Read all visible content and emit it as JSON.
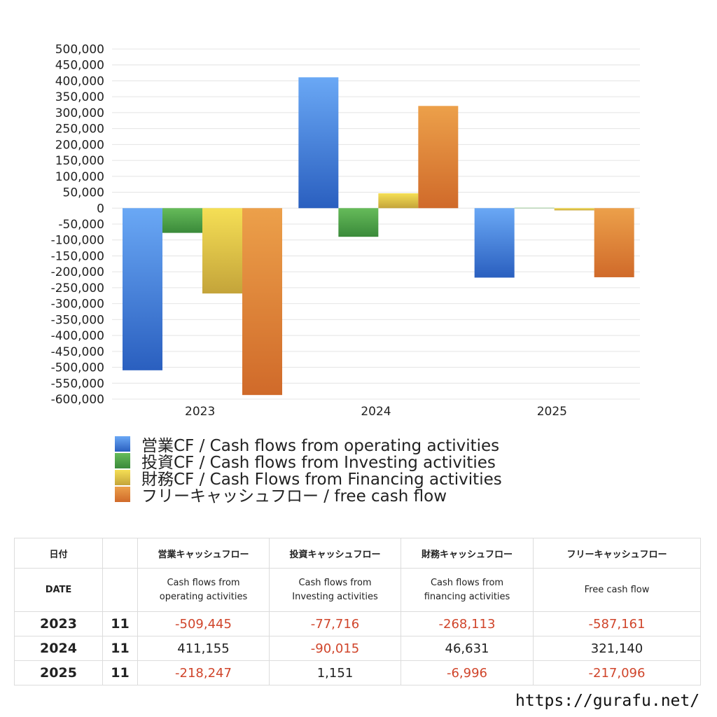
{
  "chart_data": {
    "type": "bar",
    "categories": [
      "2023",
      "2024",
      "2025"
    ],
    "series": [
      {
        "name": "営業CF / Cash flows from operating activities",
        "values": [
          -509445,
          411155,
          -218247
        ],
        "color_top": "#6aa8f5",
        "color_bottom": "#2a5fbf"
      },
      {
        "name": "投資CF / Cash flows from Investing activities",
        "values": [
          -77716,
          -90015,
          1151
        ],
        "color_top": "#66bb5a",
        "color_bottom": "#3a8a3a"
      },
      {
        "name": "財務CF / Cash Flows from Financing activities",
        "values": [
          -268113,
          46631,
          -6996
        ],
        "color_top": "#f5df55",
        "color_bottom": "#c4a43a"
      },
      {
        "name": "フリーキャッシュフロー / free cash flow",
        "values": [
          -587161,
          321140,
          -217096
        ],
        "color_top": "#eca04a",
        "color_bottom": "#d06a2a"
      }
    ],
    "ylim": [
      -600000,
      500000
    ],
    "ytick_step": 50000,
    "grid": true,
    "legend": "bottom"
  },
  "table": {
    "header_ja": [
      "日付",
      "",
      "営業キャッシュフロー",
      "投資キャッシュフロー",
      "財務キャッシュフロー",
      "フリーキャッシュフロー"
    ],
    "header_en": [
      "DATE",
      "",
      "Cash flows from operating activities",
      "Cash flows from Investing activities",
      "Cash flows from financing activities",
      "Free cash flow"
    ],
    "header_en_lines": [
      [
        "DATE"
      ],
      [
        ""
      ],
      [
        "Cash flows from",
        "operating activities"
      ],
      [
        "Cash flows from",
        "Investing activities"
      ],
      [
        "Cash flows from",
        "financing activities"
      ],
      [
        "Free cash flow"
      ]
    ],
    "rows": [
      {
        "year": "2023",
        "month": "11",
        "values": [
          "-509,445",
          "-77,716",
          "-268,113",
          "-587,161"
        ]
      },
      {
        "year": "2024",
        "month": "11",
        "values": [
          "411,155",
          "-90,015",
          "46,631",
          "321,140"
        ]
      },
      {
        "year": "2025",
        "month": "11",
        "values": [
          "-218,247",
          "1,151",
          "-6,996",
          "-217,096"
        ]
      }
    ],
    "negative_color": "#d0452b"
  },
  "footer": {
    "url": "https://gurafu.net/"
  }
}
